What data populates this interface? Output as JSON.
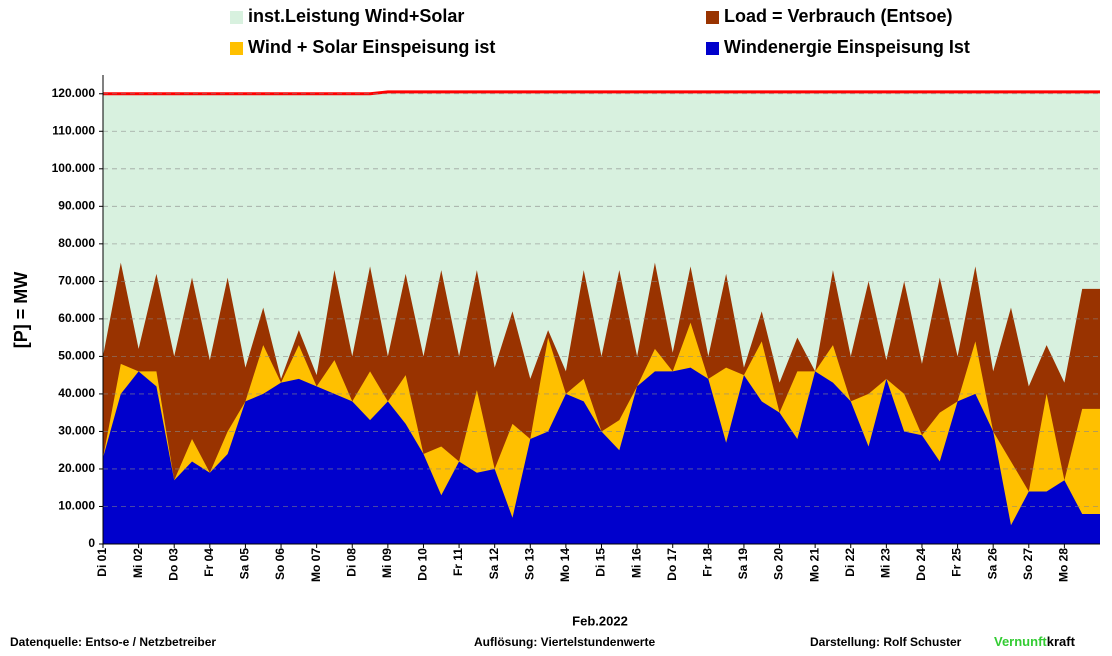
{
  "chart_data": {
    "type": "area",
    "y_label": "[P] = MW",
    "x_label": "Feb.2022",
    "categories": [
      "Di 01",
      null,
      "Mi 02",
      null,
      "Do 03",
      null,
      "Fr 04",
      null,
      "Sa 05",
      null,
      "So 06",
      null,
      "Mo 07",
      null,
      "Di 08",
      null,
      "Mi 09",
      null,
      "Do 10",
      null,
      "Fr 11",
      null,
      "Sa 12",
      null,
      "So 13",
      null,
      "Mo 14",
      null,
      "Di 15",
      null,
      "Mi 16",
      null,
      "Do 17",
      null,
      "Fr 18",
      null,
      "Sa 19",
      null,
      "So 20",
      null,
      "Mo 21",
      null,
      "Di 22",
      null,
      "Mi 23",
      null,
      "Do 24",
      null,
      "Fr 25",
      null,
      "Sa 26",
      null,
      "So 27",
      null,
      "Mo 28",
      null
    ],
    "series": [
      {
        "name": "inst.Leistung Wind+Solar",
        "color": "#d8f1df",
        "line_color": "#ff0000",
        "values": [
          120000,
          120000,
          120000,
          120000,
          120000,
          120000,
          120000,
          120000,
          120000,
          120000,
          120000,
          120000,
          120000,
          120000,
          120000,
          120000,
          120500,
          120500,
          120500,
          120500,
          120500,
          120500,
          120500,
          120500,
          120500,
          120500,
          120500,
          120500,
          120500,
          120500,
          120500,
          120500,
          120500,
          120500,
          120500,
          120500,
          120500,
          120500,
          120500,
          120500,
          120500,
          120500,
          120500,
          120500,
          120500,
          120500,
          120500,
          120500,
          120500,
          120500,
          120500,
          120500,
          120500,
          120500,
          120500,
          120500
        ]
      },
      {
        "name": "Load =  Verbrauch (Entsoe)",
        "color": "#993300",
        "values": [
          50000,
          75000,
          52000,
          72000,
          50000,
          71000,
          49000,
          71000,
          47000,
          63000,
          44000,
          57000,
          45000,
          73000,
          50000,
          74000,
          50000,
          72000,
          50000,
          73000,
          50000,
          73000,
          47000,
          62000,
          44000,
          57000,
          46000,
          73000,
          50000,
          73000,
          50000,
          75000,
          51000,
          74000,
          50000,
          72000,
          47000,
          62000,
          43000,
          55000,
          46000,
          73000,
          50000,
          70000,
          49000,
          70000,
          48000,
          71000,
          50000,
          74000,
          46000,
          63000,
          42000,
          53000,
          43000,
          68000
        ]
      },
      {
        "name": "Wind + Solar Einspeisung ist",
        "color": "#ffc000",
        "values": [
          23000,
          48000,
          46000,
          46000,
          17000,
          28000,
          19000,
          30000,
          38000,
          53000,
          43000,
          53000,
          42000,
          49000,
          38000,
          46000,
          38000,
          45000,
          24000,
          26000,
          22000,
          41000,
          20000,
          32000,
          28000,
          55000,
          40000,
          44000,
          30000,
          33000,
          42000,
          52000,
          46000,
          59000,
          44000,
          47000,
          45000,
          54000,
          35000,
          46000,
          46000,
          53000,
          38000,
          40000,
          44000,
          40000,
          29000,
          35000,
          38000,
          54000,
          30000,
          22000,
          14000,
          40000,
          17000,
          36000
        ]
      },
      {
        "name": "Windenergie Einspeisung Ist",
        "color": "#0000cc",
        "values": [
          23000,
          40000,
          46000,
          42000,
          17000,
          22000,
          19000,
          24000,
          38000,
          40000,
          43000,
          44000,
          42000,
          40000,
          38000,
          33000,
          38000,
          32000,
          24000,
          13000,
          22000,
          19000,
          20000,
          7000,
          28000,
          30000,
          40000,
          38000,
          30000,
          25000,
          42000,
          46000,
          46000,
          47000,
          44000,
          27000,
          45000,
          38000,
          35000,
          28000,
          46000,
          43000,
          38000,
          26000,
          44000,
          30000,
          29000,
          22000,
          38000,
          40000,
          30000,
          5000,
          14000,
          14000,
          17000,
          8000
        ]
      }
    ],
    "ylim": [
      0,
      125000
    ],
    "yticks": [
      0,
      {
        "value": 10000,
        "label": "10.000"
      },
      {
        "value": 20000,
        "label": "20.000"
      },
      {
        "value": 30000,
        "label": "30.000"
      },
      {
        "value": 40000,
        "label": "40.000"
      },
      {
        "value": 50000,
        "label": "50.000"
      },
      {
        "value": 60000,
        "label": "60.000"
      },
      {
        "value": 70000,
        "label": "70.000"
      },
      {
        "value": 80000,
        "label": "80.000"
      },
      {
        "value": 90000,
        "label": "90.000"
      },
      {
        "value": 100000,
        "label": "100.000"
      },
      {
        "value": 110000,
        "label": "110.000"
      },
      {
        "value": 120000,
        "label": "120.000"
      }
    ],
    "grid": true,
    "footer": {
      "source": "Datenquelle:  Entso-e  / Netzbetreiber",
      "resolution": "Auflösung: Viertelstundenwerte",
      "author": "Darstellung:  Rolf Schuster",
      "brand_green": "Vernunft",
      "brand_rest": "kraft"
    }
  }
}
